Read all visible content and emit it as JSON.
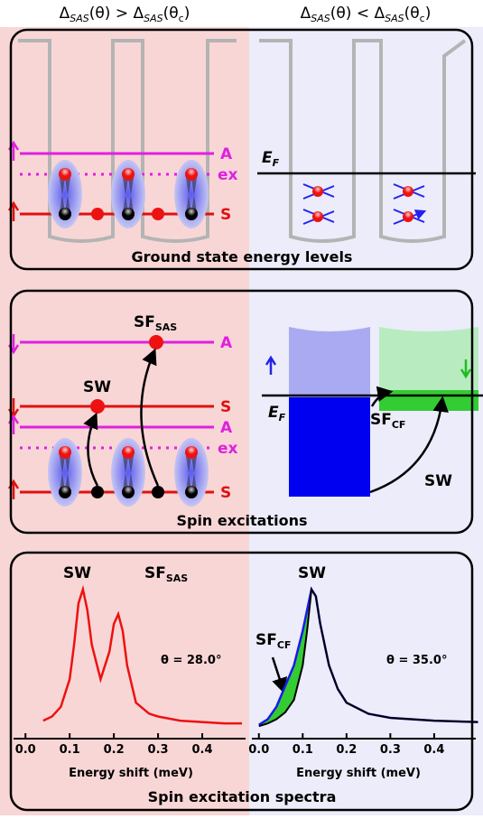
{
  "header": {
    "left": [
      "Δ",
      "SAS",
      "(θ) > Δ",
      "SAS",
      "(θ",
      "c",
      ")"
    ],
    "right": [
      "Δ",
      "SAS",
      "(θ) < Δ",
      "SAS",
      "(θ",
      "c",
      ")"
    ]
  },
  "panel1": {
    "caption": "Ground state energy levels",
    "levels": [
      "A",
      "ex",
      "S"
    ],
    "fermi": [
      "E",
      "F"
    ]
  },
  "panel2": {
    "caption": "Spin excitations",
    "sf_sas": [
      "SF",
      "SAS"
    ],
    "sw_left": "SW",
    "levels": [
      "A",
      "S",
      "A",
      "ex",
      "S"
    ],
    "fermi": [
      "E",
      "F"
    ],
    "sf_cf": [
      "SF",
      "CF"
    ],
    "sw_right": "SW"
  },
  "panel3": {
    "caption": "Spin excitation spectra"
  },
  "chart_data": [
    {
      "type": "line",
      "x_label": "Energy shift (meV)",
      "annotations": [
        "SW",
        "SF",
        "SAS",
        "θ = 28.0°"
      ],
      "x": [
        0.04,
        0.06,
        0.08,
        0.1,
        0.11,
        0.12,
        0.13,
        0.14,
        0.15,
        0.17,
        0.19,
        0.2,
        0.21,
        0.22,
        0.23,
        0.25,
        0.28,
        0.3,
        0.35,
        0.4,
        0.45,
        0.49
      ],
      "series": [
        {
          "color": "#ee1111",
          "values": [
            0.05,
            0.08,
            0.15,
            0.35,
            0.6,
            0.9,
            1.0,
            0.85,
            0.6,
            0.35,
            0.55,
            0.75,
            0.82,
            0.7,
            0.45,
            0.18,
            0.1,
            0.08,
            0.05,
            0.04,
            0.03,
            0.03
          ]
        }
      ],
      "xlim": [
        -0.027,
        0.498
      ],
      "ylim": [
        -0.08,
        1.05
      ],
      "xticks": [
        {
          "value": 0,
          "label": "0.0"
        },
        0.1,
        0.2,
        0.3,
        0.4
      ]
    },
    {
      "type": "line",
      "x_label": "Energy shift (meV)",
      "annotations": [
        "SW",
        "SF",
        "CF",
        "θ = 35.0°"
      ],
      "fill_color": "#33cc33",
      "x": [
        0.0,
        0.02,
        0.04,
        0.06,
        0.08,
        0.1,
        0.11,
        0.12,
        0.13,
        0.14,
        0.16,
        0.18,
        0.2,
        0.25,
        0.3,
        0.4,
        0.5
      ],
      "series": [
        {
          "color": "#1a1aee",
          "values": [
            0.02,
            0.06,
            0.15,
            0.3,
            0.45,
            0.7,
            0.85,
            1.0,
            0.95,
            0.75,
            0.45,
            0.28,
            0.18,
            0.1,
            0.07,
            0.05,
            0.04
          ]
        },
        {
          "color": "#000000",
          "values": [
            0.01,
            0.03,
            0.06,
            0.11,
            0.2,
            0.45,
            0.7,
            1.0,
            0.95,
            0.75,
            0.45,
            0.28,
            0.18,
            0.1,
            0.07,
            0.05,
            0.04
          ]
        }
      ],
      "xlim": [
        -0.016,
        0.495
      ],
      "ylim": [
        -0.08,
        1.05
      ],
      "xticks": [
        {
          "value": 0,
          "label": "0.0"
        },
        0.1,
        0.2,
        0.3,
        0.4
      ]
    }
  ]
}
